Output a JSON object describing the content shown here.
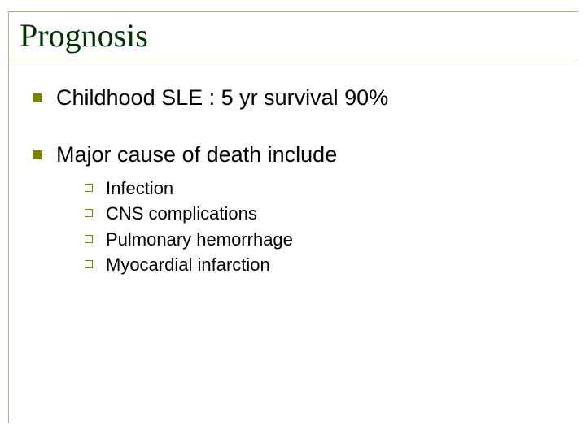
{
  "slide": {
    "title": "Prognosis",
    "title_color": "#003300",
    "title_font": "Times New Roman",
    "title_fontsize": 40,
    "rule_color": "#bfa97a",
    "bullet_color": "#808000",
    "body_font": "Arial",
    "body_fontsize": 27,
    "sub_fontsize": 22,
    "background_color": "#ffffff",
    "bullets": [
      {
        "text": "Childhood SLE : 5 yr survival 90%"
      },
      {
        "text": "Major cause of death include",
        "sub": [
          "Infection",
          "CNS complications",
          "Pulmonary hemorrhage",
          "Myocardial infarction"
        ]
      }
    ]
  }
}
